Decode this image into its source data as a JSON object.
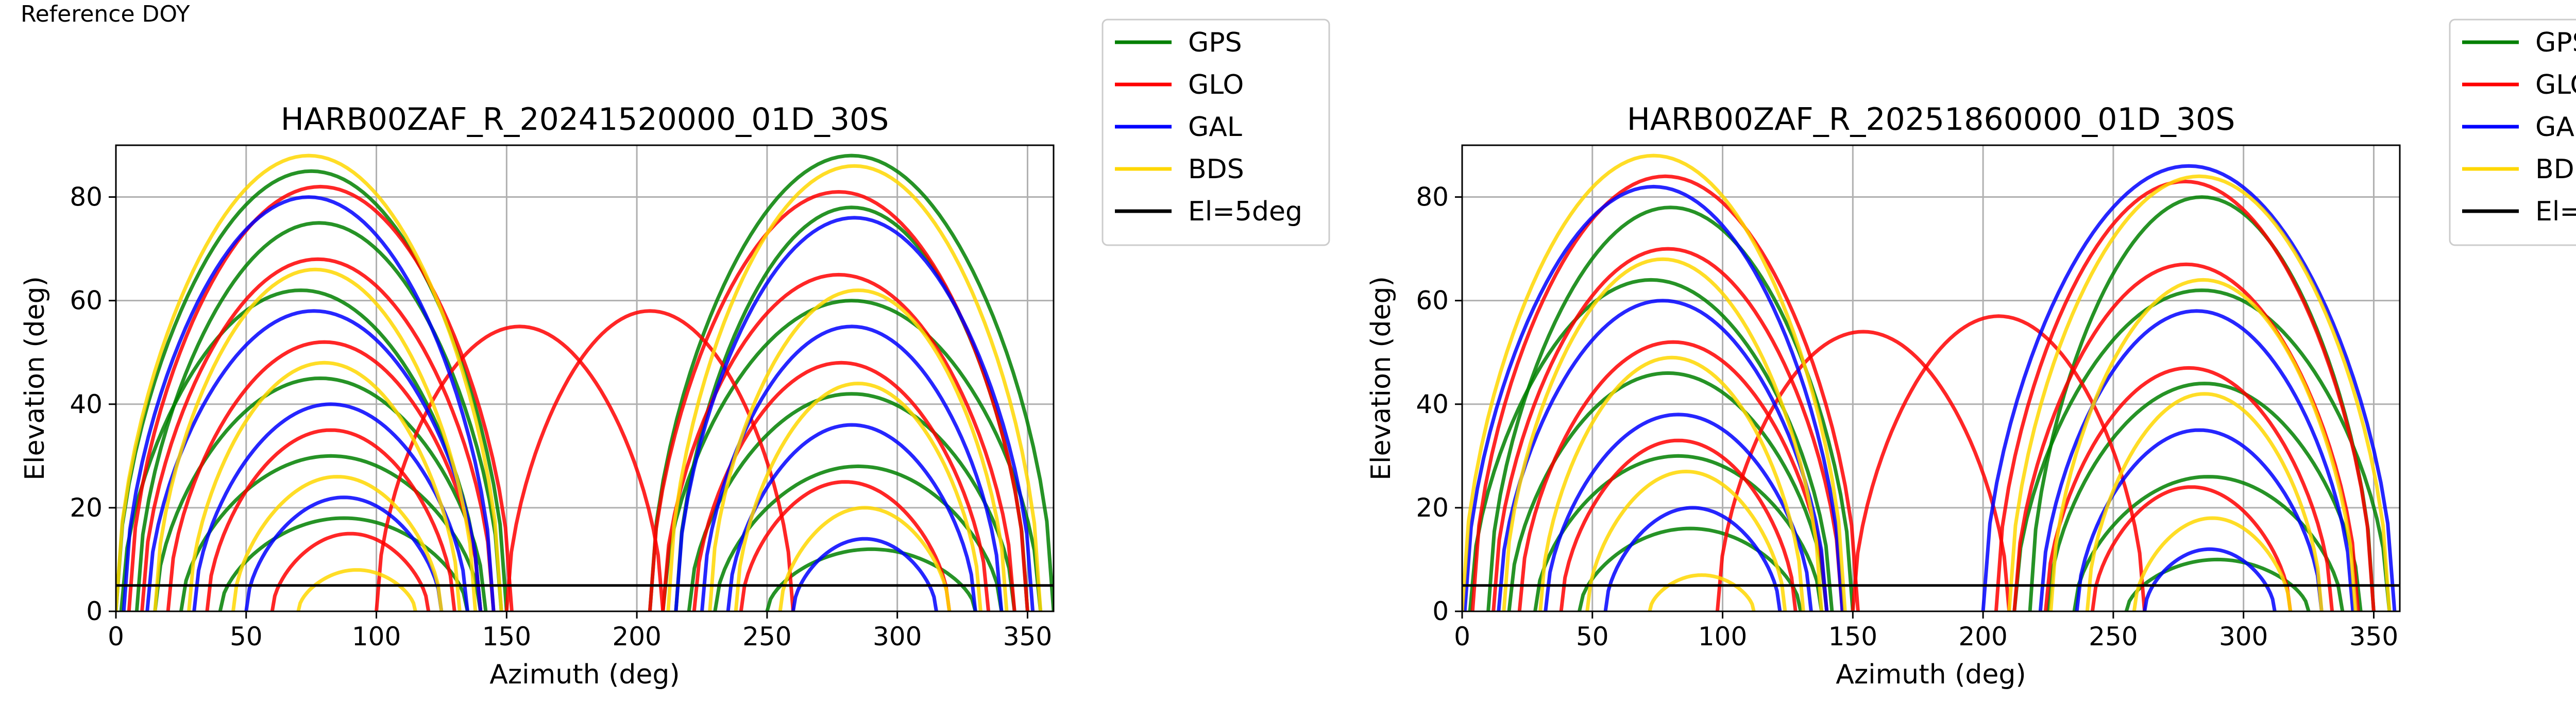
{
  "figure": {
    "top_label": "Reference DOY"
  },
  "legend": {
    "entries": [
      {
        "label": "GPS",
        "color": "#008000"
      },
      {
        "label": "GLO",
        "color": "#ff0000"
      },
      {
        "label": "GAL",
        "color": "#0000ff"
      },
      {
        "label": "BDS",
        "color": "#ffd700"
      },
      {
        "label": "El=5deg",
        "color": "#000000"
      }
    ]
  },
  "chart_data": [
    {
      "type": "line",
      "title": "HARB00ZAF_R_20241520000_01D_30S",
      "xlabel": "Azimuth (deg)",
      "ylabel": "Elevation (deg)",
      "xlim": [
        0,
        360
      ],
      "ylim": [
        0,
        90
      ],
      "xticks": [
        0,
        50,
        100,
        150,
        200,
        250,
        300,
        350
      ],
      "yticks": [
        0,
        20,
        40,
        60,
        80
      ],
      "grid": true,
      "legend_position": "outside-right",
      "reference_line": {
        "name": "El=5deg",
        "y": 5,
        "color": "#000000"
      },
      "series": [
        {
          "name": "GPS",
          "color": "#008000",
          "tracks": [
            {
              "a0": 2,
              "a1": 140,
              "peak": 62
            },
            {
              "a0": 8,
              "a1": 148,
              "peak": 75
            },
            {
              "a0": 15,
              "a1": 142,
              "peak": 45
            },
            {
              "a0": 25,
              "a1": 140,
              "peak": 30
            },
            {
              "a0": 40,
              "a1": 135,
              "peak": 18
            },
            {
              "a0": 0,
              "a1": 150,
              "peak": 85
            },
            {
              "a0": 210,
              "a1": 355,
              "peak": 60
            },
            {
              "a0": 215,
              "a1": 350,
              "peak": 78
            },
            {
              "a0": 220,
              "a1": 345,
              "peak": 42
            },
            {
              "a0": 230,
              "a1": 340,
              "peak": 28
            },
            {
              "a0": 205,
              "a1": 360,
              "peak": 88
            },
            {
              "a0": 250,
              "a1": 330,
              "peak": 12
            }
          ]
        },
        {
          "name": "GLO",
          "color": "#ff0000",
          "tracks": [
            {
              "a0": 5,
              "a1": 152,
              "peak": 82
            },
            {
              "a0": 10,
              "a1": 145,
              "peak": 68
            },
            {
              "a0": 20,
              "a1": 140,
              "peak": 52
            },
            {
              "a0": 35,
              "a1": 130,
              "peak": 35
            },
            {
              "a0": 60,
              "a1": 120,
              "peak": 15
            },
            {
              "a0": 205,
              "a1": 350,
              "peak": 81
            },
            {
              "a0": 210,
              "a1": 345,
              "peak": 65
            },
            {
              "a0": 222,
              "a1": 335,
              "peak": 48
            },
            {
              "a0": 240,
              "a1": 320,
              "peak": 25
            },
            {
              "a0": 150,
              "a1": 260,
              "peak": 58
            },
            {
              "a0": 100,
              "a1": 210,
              "peak": 55
            }
          ]
        },
        {
          "name": "GAL",
          "color": "#0000ff",
          "tracks": [
            {
              "a0": 3,
              "a1": 145,
              "peak": 80
            },
            {
              "a0": 12,
              "a1": 140,
              "peak": 58
            },
            {
              "a0": 30,
              "a1": 135,
              "peak": 40
            },
            {
              "a0": 50,
              "a1": 125,
              "peak": 22
            },
            {
              "a0": 215,
              "a1": 352,
              "peak": 76
            },
            {
              "a0": 225,
              "a1": 340,
              "peak": 55
            },
            {
              "a0": 235,
              "a1": 330,
              "peak": 36
            },
            {
              "a0": 260,
              "a1": 315,
              "peak": 14
            }
          ]
        },
        {
          "name": "BDS",
          "color": "#ffd700",
          "tracks": [
            {
              "a0": 0,
              "a1": 148,
              "peak": 88
            },
            {
              "a0": 15,
              "a1": 138,
              "peak": 66
            },
            {
              "a0": 28,
              "a1": 132,
              "peak": 48
            },
            {
              "a0": 45,
              "a1": 125,
              "peak": 26
            },
            {
              "a0": 70,
              "a1": 115,
              "peak": 8
            },
            {
              "a0": 212,
              "a1": 355,
              "peak": 86
            },
            {
              "a0": 228,
              "a1": 342,
              "peak": 62
            },
            {
              "a0": 238,
              "a1": 332,
              "peak": 44
            },
            {
              "a0": 255,
              "a1": 320,
              "peak": 20
            }
          ]
        }
      ]
    },
    {
      "type": "line",
      "title": "HARB00ZAF_R_20251860000_01D_30S",
      "xlabel": "Azimuth (deg)",
      "ylabel": "Elevation (deg)",
      "xlim": [
        0,
        360
      ],
      "ylim": [
        0,
        90
      ],
      "xticks": [
        0,
        50,
        100,
        150,
        200,
        250,
        300,
        350
      ],
      "yticks": [
        0,
        20,
        40,
        60,
        80
      ],
      "grid": true,
      "legend_position": "outside-right",
      "reference_line": {
        "name": "El=5deg",
        "y": 5,
        "color": "#000000"
      },
      "series": [
        {
          "name": "GPS",
          "color": "#008000",
          "tracks": [
            {
              "a0": 3,
              "a1": 142,
              "peak": 64
            },
            {
              "a0": 10,
              "a1": 150,
              "peak": 78
            },
            {
              "a0": 18,
              "a1": 140,
              "peak": 46
            },
            {
              "a0": 28,
              "a1": 138,
              "peak": 30
            },
            {
              "a0": 45,
              "a1": 130,
              "peak": 16
            },
            {
              "a0": 212,
              "a1": 356,
              "peak": 62
            },
            {
              "a0": 218,
              "a1": 350,
              "peak": 80
            },
            {
              "a0": 225,
              "a1": 345,
              "peak": 44
            },
            {
              "a0": 235,
              "a1": 338,
              "peak": 26
            },
            {
              "a0": 255,
              "a1": 325,
              "peak": 10
            }
          ]
        },
        {
          "name": "GLO",
          "color": "#ff0000",
          "tracks": [
            {
              "a0": 4,
              "a1": 152,
              "peak": 84
            },
            {
              "a0": 12,
              "a1": 146,
              "peak": 70
            },
            {
              "a0": 22,
              "a1": 140,
              "peak": 52
            },
            {
              "a0": 38,
              "a1": 128,
              "peak": 33
            },
            {
              "a0": 205,
              "a1": 350,
              "peak": 83
            },
            {
              "a0": 212,
              "a1": 344,
              "peak": 67
            },
            {
              "a0": 224,
              "a1": 334,
              "peak": 47
            },
            {
              "a0": 242,
              "a1": 318,
              "peak": 24
            },
            {
              "a0": 150,
              "a1": 262,
              "peak": 57
            },
            {
              "a0": 98,
              "a1": 210,
              "peak": 54
            }
          ]
        },
        {
          "name": "GAL",
          "color": "#0000ff",
          "tracks": [
            {
              "a0": 1,
              "a1": 146,
              "peak": 82
            },
            {
              "a0": 14,
              "a1": 140,
              "peak": 60
            },
            {
              "a0": 32,
              "a1": 134,
              "peak": 38
            },
            {
              "a0": 55,
              "a1": 122,
              "peak": 20
            },
            {
              "a0": 200,
              "a1": 358,
              "peak": 86
            },
            {
              "a0": 222,
              "a1": 342,
              "peak": 58
            },
            {
              "a0": 236,
              "a1": 330,
              "peak": 35
            },
            {
              "a0": 262,
              "a1": 312,
              "peak": 12
            }
          ]
        },
        {
          "name": "BDS",
          "color": "#ffd700",
          "tracks": [
            {
              "a0": 0,
              "a1": 147,
              "peak": 88
            },
            {
              "a0": 16,
              "a1": 138,
              "peak": 68
            },
            {
              "a0": 30,
              "a1": 131,
              "peak": 49
            },
            {
              "a0": 48,
              "a1": 124,
              "peak": 27
            },
            {
              "a0": 72,
              "a1": 112,
              "peak": 7
            },
            {
              "a0": 210,
              "a1": 356,
              "peak": 84
            },
            {
              "a0": 226,
              "a1": 343,
              "peak": 64
            },
            {
              "a0": 240,
              "a1": 330,
              "peak": 42
            },
            {
              "a0": 258,
              "a1": 318,
              "peak": 18
            }
          ]
        }
      ]
    }
  ]
}
